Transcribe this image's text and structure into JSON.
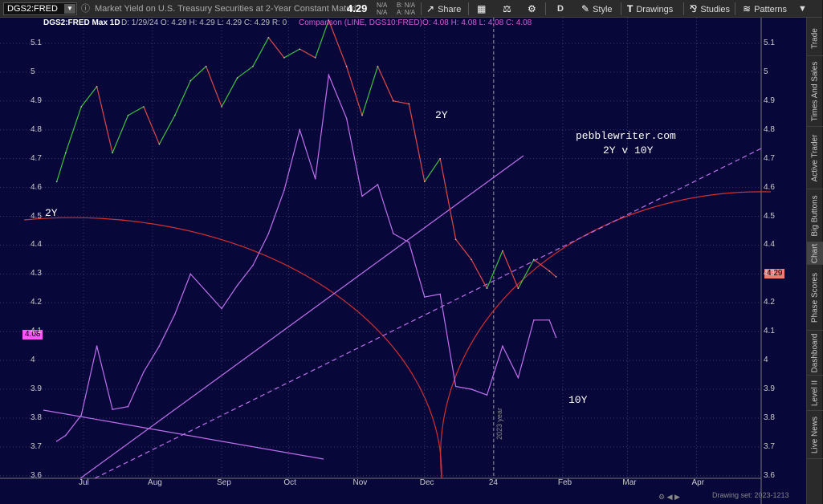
{
  "toolbar": {
    "symbol": "DGS2:FRED",
    "description": "Market Yield on U.S. Treasury Securities at 2-Year Constant Maturi...",
    "last": "4.29",
    "bid_label": "N/A",
    "ask_label": "N/A",
    "b_label": "B: N/A",
    "a_label": "A: N/A",
    "share": "Share",
    "timeframe": "D",
    "style": "Style",
    "drawings": "Drawings",
    "studies": "Studies",
    "patterns": "Patterns"
  },
  "header": {
    "symbol": "DGS2:FRED Max 1D",
    "values": "D: 1/29/24   O: 4.29   H: 4.29   L: 4.29   C: 4.29   R: 0",
    "comparison": "Comparison (LINE, DGS10:FRED)",
    "comparison_values": "O: 4.08   H: 4.08   L: 4.08   C: 4.08"
  },
  "price_tags": {
    "last": "4.29",
    "comparison": "4.08"
  },
  "annotations": {
    "label_2y_left": "2Y",
    "label_2y_mid": "2Y",
    "label_10y": "10Y",
    "site": "pebblewriter.com",
    "subtitle": "2Y v 10Y",
    "vertical_marker": "2023 year"
  },
  "footer": {
    "status": "Drawing set: 2023-1213"
  },
  "right_tabs": [
    "Trade",
    "Times And Sales",
    "Active Trader",
    "Big Buttons",
    "Chart",
    "Phase Scores",
    "Dashboard",
    "Level II",
    "Live News"
  ],
  "colors": {
    "background": "#07073a",
    "up": "#3ec23e",
    "down": "#e04848",
    "comparison": "#c070f0",
    "arc": "#d03030"
  },
  "chart_data": {
    "type": "line",
    "x_ticks": [
      "Jul",
      "Aug",
      "Sep",
      "Oct",
      "Nov",
      "Dec",
      "24",
      "Feb",
      "Mar",
      "Apr"
    ],
    "y_ticks": [
      3.6,
      3.7,
      3.8,
      3.9,
      4.0,
      4.1,
      4.2,
      4.3,
      4.4,
      4.5,
      4.6,
      4.7,
      4.8,
      4.9,
      5.0,
      5.1
    ],
    "ylim": [
      3.58,
      5.15
    ],
    "series": [
      {
        "name": "DGS2:FRED",
        "x": [
          "6/19/23",
          "6/23/23",
          "6/30/23",
          "7/7/23",
          "7/14/23",
          "7/21/23",
          "7/28/23",
          "8/4/23",
          "8/11/23",
          "8/18/23",
          "8/25/23",
          "9/1/23",
          "9/8/23",
          "9/15/23",
          "9/22/23",
          "9/29/23",
          "10/6/23",
          "10/13/23",
          "10/19/23",
          "10/27/23",
          "11/3/23",
          "11/10/23",
          "11/17/23",
          "11/24/23",
          "12/1/23",
          "12/8/23",
          "12/15/23",
          "12/22/23",
          "12/29/23",
          "1/5/24",
          "1/12/24",
          "1/19/24",
          "1/26/24",
          "1/29/24"
        ],
        "values": [
          4.62,
          4.72,
          4.88,
          4.95,
          4.72,
          4.85,
          4.88,
          4.75,
          4.85,
          4.97,
          5.02,
          4.88,
          4.98,
          5.02,
          5.12,
          5.05,
          5.08,
          5.05,
          5.18,
          5.02,
          4.85,
          5.02,
          4.9,
          4.89,
          4.62,
          4.7,
          4.42,
          4.35,
          4.25,
          4.38,
          4.25,
          4.35,
          4.31,
          4.29
        ]
      },
      {
        "name": "DGS10:FRED",
        "x": [
          "6/19/23",
          "6/23/23",
          "6/30/23",
          "7/7/23",
          "7/14/23",
          "7/21/23",
          "7/28/23",
          "8/4/23",
          "8/11/23",
          "8/18/23",
          "8/25/23",
          "9/1/23",
          "9/8/23",
          "9/15/23",
          "9/22/23",
          "9/29/23",
          "10/6/23",
          "10/13/23",
          "10/19/23",
          "10/27/23",
          "11/3/23",
          "11/10/23",
          "11/17/23",
          "11/24/23",
          "12/1/23",
          "12/8/23",
          "12/15/23",
          "12/22/23",
          "12/29/23",
          "1/5/24",
          "1/12/24",
          "1/19/24",
          "1/26/24",
          "1/29/24"
        ],
        "values": [
          3.72,
          3.74,
          3.81,
          4.05,
          3.83,
          3.84,
          3.96,
          4.05,
          4.16,
          4.3,
          4.24,
          4.18,
          4.26,
          4.33,
          4.44,
          4.59,
          4.8,
          4.63,
          4.99,
          4.84,
          4.57,
          4.61,
          4.44,
          4.41,
          4.22,
          4.23,
          3.91,
          3.9,
          3.88,
          4.05,
          3.94,
          4.14,
          4.14,
          4.08
        ]
      }
    ]
  }
}
